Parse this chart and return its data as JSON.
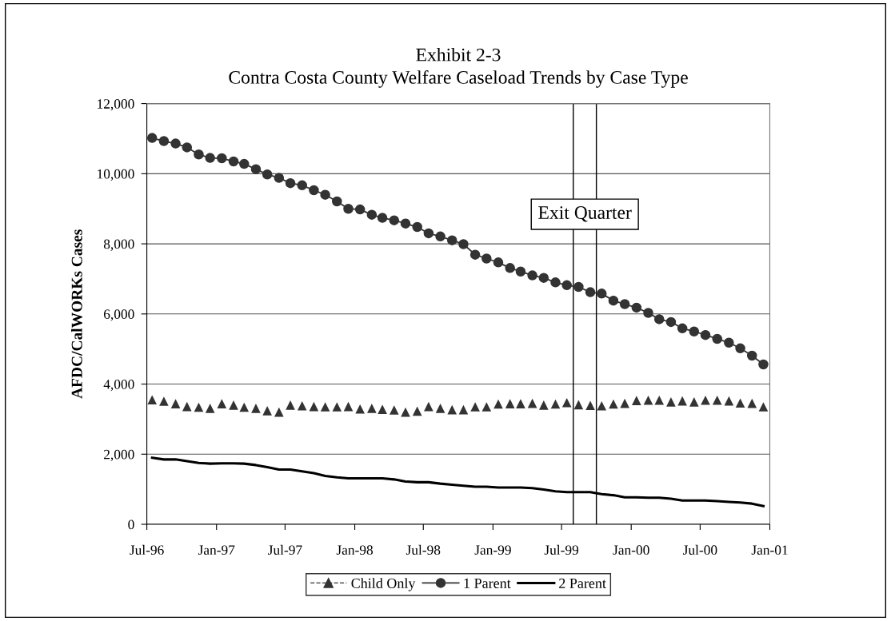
{
  "chart_data": {
    "type": "line",
    "title": "Exhibit 2-3\nContra Costa County Welfare Caseload Trends by Case Type",
    "ylabel": "AFDC/CalWORKs Cases",
    "x": [
      "1996-07-15",
      "1996-08-15",
      "1996-09-15",
      "1996-10-15",
      "1996-11-15",
      "1996-12-15",
      "1997-01-15",
      "1997-02-15",
      "1997-03-15",
      "1997-04-15",
      "1997-05-15",
      "1997-06-15",
      "1997-07-15",
      "1997-08-15",
      "1997-09-15",
      "1997-10-15",
      "1997-11-15",
      "1997-12-15",
      "1998-01-15",
      "1998-02-15",
      "1998-03-15",
      "1998-04-15",
      "1998-05-15",
      "1998-06-15",
      "1998-07-15",
      "1998-08-15",
      "1998-09-15",
      "1998-10-15",
      "1998-11-15",
      "1998-12-15",
      "1999-01-15",
      "1999-02-15",
      "1999-03-15",
      "1999-04-15",
      "1999-05-15",
      "1999-06-15",
      "1999-07-15",
      "1999-08-15",
      "1999-09-15",
      "1999-10-15",
      "1999-11-15",
      "1999-12-15",
      "2000-01-15",
      "2000-02-15",
      "2000-03-15",
      "2000-04-15",
      "2000-05-15",
      "2000-06-15",
      "2000-07-15",
      "2000-08-15",
      "2000-09-15",
      "2000-10-15",
      "2000-11-15",
      "2000-12-15"
    ],
    "series": [
      {
        "name": "Child Only",
        "type": "scatter",
        "marker": "triangle",
        "color": "#333333",
        "values": [
          3550,
          3510,
          3440,
          3360,
          3340,
          3310,
          3440,
          3400,
          3340,
          3310,
          3240,
          3200,
          3400,
          3380,
          3360,
          3350,
          3350,
          3360,
          3290,
          3310,
          3280,
          3260,
          3200,
          3230,
          3360,
          3310,
          3270,
          3270,
          3350,
          3350,
          3430,
          3440,
          3440,
          3450,
          3400,
          3430,
          3470,
          3410,
          3390,
          3380,
          3430,
          3450,
          3530,
          3540,
          3540,
          3490,
          3520,
          3490,
          3540,
          3540,
          3520,
          3460,
          3450,
          3350
        ]
      },
      {
        "name": "1 Parent",
        "marker": "circle",
        "color": "#333333",
        "values": [
          11020,
          10930,
          10860,
          10750,
          10550,
          10450,
          10440,
          10350,
          10280,
          10130,
          9980,
          9880,
          9730,
          9670,
          9530,
          9400,
          9210,
          9000,
          8980,
          8830,
          8740,
          8670,
          8580,
          8480,
          8300,
          8210,
          8100,
          7990,
          7690,
          7580,
          7470,
          7310,
          7210,
          7100,
          7030,
          6900,
          6820,
          6770,
          6620,
          6580,
          6380,
          6280,
          6180,
          6030,
          5850,
          5770,
          5590,
          5500,
          5400,
          5290,
          5180,
          5020,
          4810,
          4560
        ]
      },
      {
        "name": "2 Parent",
        "marker": "none",
        "color": "#000000",
        "values": [
          1900,
          1850,
          1850,
          1800,
          1750,
          1730,
          1740,
          1740,
          1730,
          1690,
          1630,
          1560,
          1560,
          1510,
          1460,
          1380,
          1340,
          1310,
          1310,
          1310,
          1310,
          1280,
          1220,
          1200,
          1200,
          1160,
          1130,
          1100,
          1070,
          1070,
          1050,
          1050,
          1050,
          1030,
          990,
          940,
          920,
          920,
          920,
          860,
          830,
          770,
          770,
          760,
          760,
          730,
          680,
          680,
          680,
          660,
          640,
          620,
          590,
          520
        ]
      }
    ],
    "xlim": [
      "1996-07-01",
      "2001-01-01"
    ],
    "xticks": [
      {
        "value": "1996-07-01",
        "label": "Jul-96"
      },
      {
        "value": "1997-01-01",
        "label": "Jan-97"
      },
      {
        "value": "1997-07-01",
        "label": "Jul-97"
      },
      {
        "value": "1998-01-01",
        "label": "Jan-98"
      },
      {
        "value": "1998-07-01",
        "label": "Jul-98"
      },
      {
        "value": "1999-01-01",
        "label": "Jan-99"
      },
      {
        "value": "1999-07-01",
        "label": "Jul-99"
      },
      {
        "value": "2000-01-01",
        "label": "Jan-00"
      },
      {
        "value": "2000-07-01",
        "label": "Jul-00"
      },
      {
        "value": "2001-01-01",
        "label": "Jan-01"
      }
    ],
    "ylim": [
      0,
      12000
    ],
    "yticks": [
      {
        "value": 0,
        "label": "0"
      },
      {
        "value": 2000,
        "label": "2,000"
      },
      {
        "value": 4000,
        "label": "4,000"
      },
      {
        "value": 6000,
        "label": "6,000"
      },
      {
        "value": 8000,
        "label": "8,000"
      },
      {
        "value": 10000,
        "label": "10,000"
      },
      {
        "value": 12000,
        "label": "12,000"
      }
    ],
    "grid": "y",
    "legend": "bottom",
    "ref_lines": [
      {
        "axis": "x",
        "value": "1999-08-01",
        "label": null,
        "color": "#000000"
      },
      {
        "axis": "x",
        "value": "1999-10-01",
        "label": null,
        "color": "#000000"
      }
    ],
    "annotations": [
      "Exit Quarter"
    ]
  }
}
